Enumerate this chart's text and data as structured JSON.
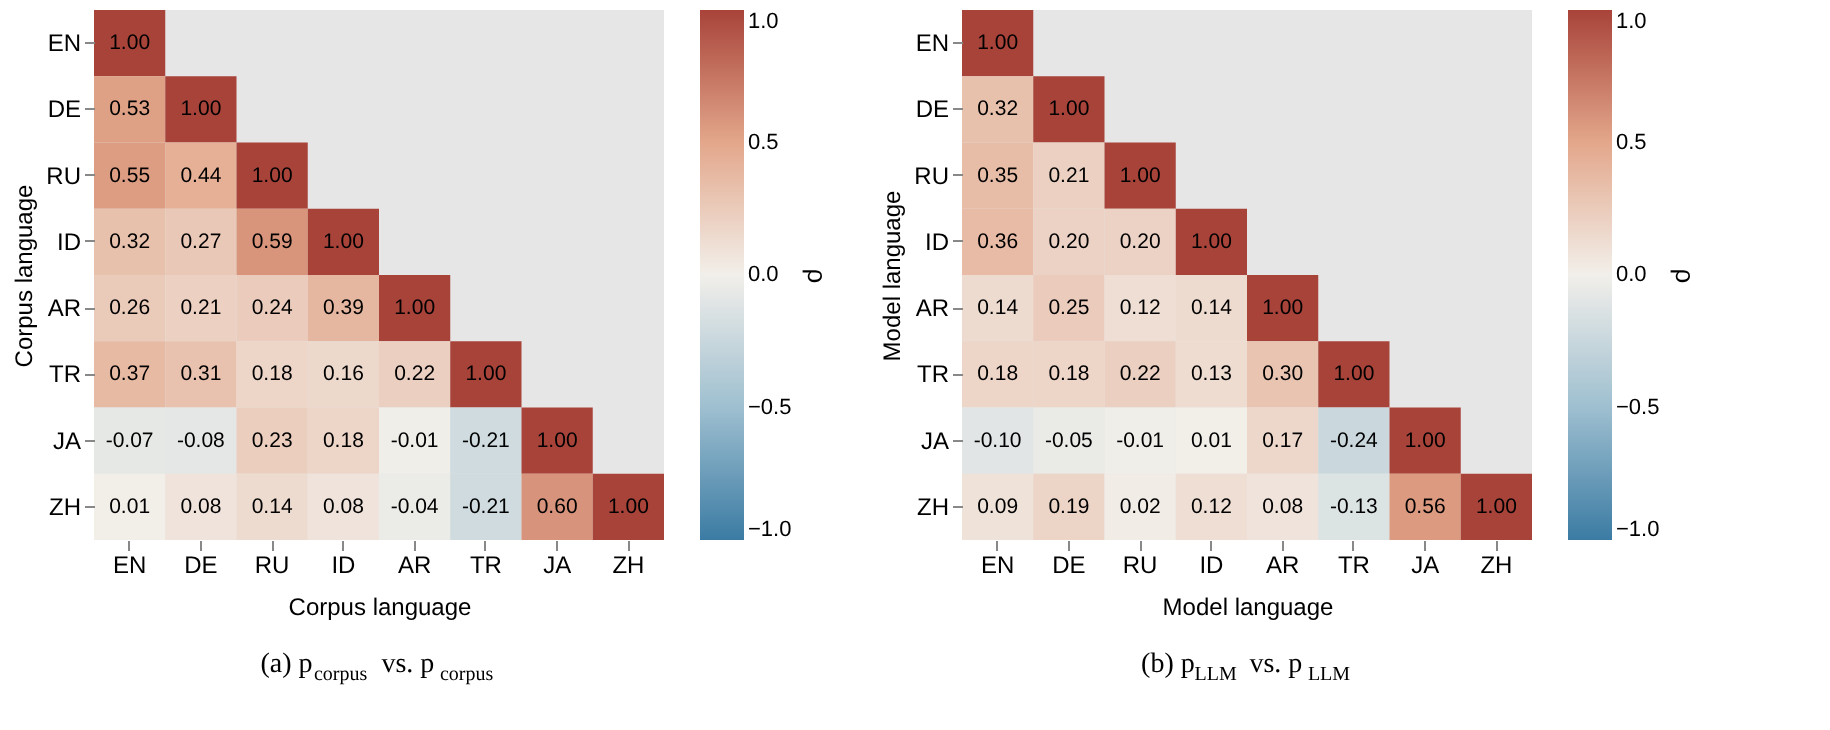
{
  "chart_data": [
    {
      "type": "heatmap",
      "xlabel": "Corpus language",
      "ylabel": "Corpus language",
      "clabel": "ρ",
      "categories": [
        "EN",
        "DE",
        "RU",
        "ID",
        "AR",
        "TR",
        "JA",
        "ZH"
      ],
      "y_categories": [
        "EN",
        "DE",
        "RU",
        "ID",
        "AR",
        "TR",
        "JA",
        "ZH"
      ],
      "cells": [
        [
          1.0,
          null,
          null,
          null,
          null,
          null,
          null,
          null
        ],
        [
          0.53,
          1.0,
          null,
          null,
          null,
          null,
          null,
          null
        ],
        [
          0.55,
          0.44,
          1.0,
          null,
          null,
          null,
          null,
          null
        ],
        [
          0.32,
          0.27,
          0.59,
          1.0,
          null,
          null,
          null,
          null
        ],
        [
          0.26,
          0.21,
          0.24,
          0.39,
          1.0,
          null,
          null,
          null
        ],
        [
          0.37,
          0.31,
          0.18,
          0.16,
          0.22,
          1.0,
          null,
          null
        ],
        [
          -0.07,
          -0.08,
          0.23,
          0.18,
          -0.01,
          -0.21,
          1.0,
          null
        ],
        [
          0.01,
          0.08,
          0.14,
          0.08,
          -0.04,
          -0.21,
          0.6,
          1.0
        ]
      ],
      "cell_labels": [
        [
          "1.00",
          null,
          null,
          null,
          null,
          null,
          null,
          null
        ],
        [
          "0.53",
          "1.00",
          null,
          null,
          null,
          null,
          null,
          null
        ],
        [
          "0.55",
          "0.44",
          "1.00",
          null,
          null,
          null,
          null,
          null
        ],
        [
          "0.32",
          "0.27",
          "0.59",
          "1.00",
          null,
          null,
          null,
          null
        ],
        [
          "0.26",
          "0.21",
          "0.24",
          "0.39",
          "1.00",
          null,
          null,
          null
        ],
        [
          "0.37",
          "0.31",
          "0.18",
          "0.16",
          "0.22",
          "1.00",
          null,
          null
        ],
        [
          "-0.07",
          "-0.08",
          "0.23",
          "0.18",
          "-0.01",
          "-0.21",
          "1.00",
          null
        ],
        [
          "0.01",
          "0.08",
          "0.14",
          "0.08",
          "-0.04",
          "-0.21",
          "0.60",
          "1.00"
        ]
      ],
      "data_labels": true,
      "clim": [
        -1,
        1
      ],
      "cticks": [
        {
          "value": 1,
          "label": "1.0"
        },
        {
          "value": 0.5,
          "label": "0.5"
        },
        {
          "value": 0,
          "label": "0.0"
        },
        {
          "value": -0.5,
          "label": "−0.5"
        },
        {
          "value": -1,
          "label": "−1.0"
        }
      ],
      "annotations": [
        "(a) p$_{corpus}$ vs. p$_{corpus}$"
      ]
    },
    {
      "type": "heatmap",
      "xlabel": "Model language",
      "ylabel": "Model language",
      "clabel": "ρ",
      "categories": [
        "EN",
        "DE",
        "RU",
        "ID",
        "AR",
        "TR",
        "JA",
        "ZH"
      ],
      "y_categories": [
        "EN",
        "DE",
        "RU",
        "ID",
        "AR",
        "TR",
        "JA",
        "ZH"
      ],
      "cells": [
        [
          1.0,
          null,
          null,
          null,
          null,
          null,
          null,
          null
        ],
        [
          0.32,
          1.0,
          null,
          null,
          null,
          null,
          null,
          null
        ],
        [
          0.35,
          0.21,
          1.0,
          null,
          null,
          null,
          null,
          null
        ],
        [
          0.36,
          0.2,
          0.2,
          1.0,
          null,
          null,
          null,
          null
        ],
        [
          0.14,
          0.25,
          0.12,
          0.14,
          1.0,
          null,
          null,
          null
        ],
        [
          0.18,
          0.18,
          0.22,
          0.13,
          0.3,
          1.0,
          null,
          null
        ],
        [
          -0.1,
          -0.05,
          -0.01,
          0.01,
          0.17,
          -0.24,
          1.0,
          null
        ],
        [
          0.09,
          0.19,
          0.02,
          0.12,
          0.08,
          -0.13,
          0.56,
          1.0
        ]
      ],
      "cell_labels": [
        [
          "1.00",
          null,
          null,
          null,
          null,
          null,
          null,
          null
        ],
        [
          "0.32",
          "1.00",
          null,
          null,
          null,
          null,
          null,
          null
        ],
        [
          "0.35",
          "0.21",
          "1.00",
          null,
          null,
          null,
          null,
          null
        ],
        [
          "0.36",
          "0.20",
          "0.20",
          "1.00",
          null,
          null,
          null,
          null
        ],
        [
          "0.14",
          "0.25",
          "0.12",
          "0.14",
          "1.00",
          null,
          null,
          null
        ],
        [
          "0.18",
          "0.18",
          "0.22",
          "0.13",
          "0.30",
          "1.00",
          null,
          null
        ],
        [
          "-0.10",
          "-0.05",
          "-0.01",
          "0.01",
          "0.17",
          "-0.24",
          "1.00",
          null
        ],
        [
          "0.09",
          "0.19",
          "0.02",
          "0.12",
          "0.08",
          "-0.13",
          "0.56",
          "1.00"
        ]
      ],
      "data_labels": true,
      "clim": [
        -1,
        1
      ],
      "cticks": [
        {
          "value": 1,
          "label": "1.0"
        },
        {
          "value": 0.5,
          "label": "0.5"
        },
        {
          "value": 0,
          "label": "0.0"
        },
        {
          "value": -0.5,
          "label": "−0.5"
        },
        {
          "value": -1,
          "label": "−1.0"
        }
      ],
      "annotations": [
        "(b) p$_{LLM}$ vs. p$_{LLM}$"
      ]
    }
  ]
}
